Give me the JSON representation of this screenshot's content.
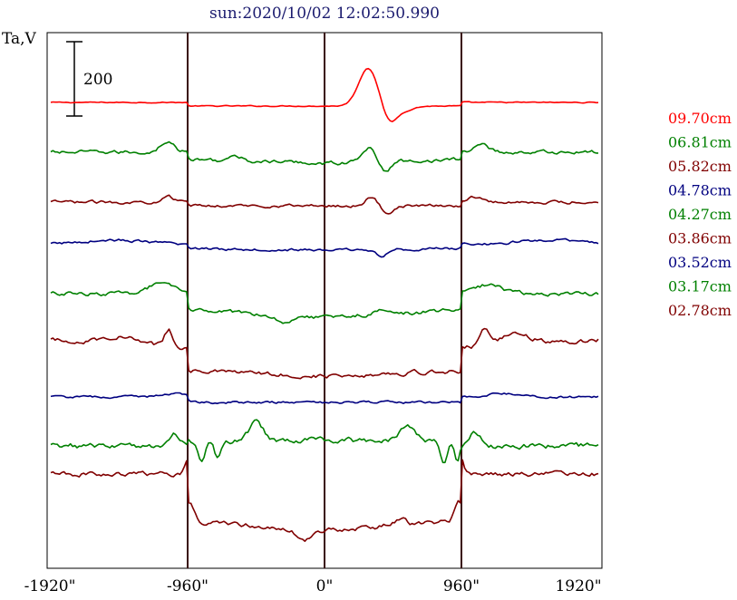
{
  "chart_data": {
    "type": "line",
    "title": "sun:2020/10/02 12:02:50.990",
    "ylabel": "Ta,V",
    "scale_bar_label": "200",
    "x_ticks": [
      "-1920\"",
      "-960\"",
      "0\"",
      "960\"",
      "1920\""
    ],
    "x_tick_values": [
      -1920,
      -960,
      0,
      960,
      1920
    ],
    "vertical_markers": [
      -960,
      0,
      960
    ],
    "grid": false,
    "legend_position": "right",
    "series": [
      {
        "name": "09.70cm",
        "color": "#ff0000",
        "offset": 0
      },
      {
        "name": "06.81cm",
        "color": "#008000",
        "offset": 1
      },
      {
        "name": "05.82cm",
        "color": "#800000",
        "offset": 2
      },
      {
        "name": "04.78cm",
        "color": "#000080",
        "offset": 3
      },
      {
        "name": "04.27cm",
        "color": "#008000",
        "offset": 4
      },
      {
        "name": "03.86cm",
        "color": "#800000",
        "offset": 5
      },
      {
        "name": "03.52cm",
        "color": "#000080",
        "offset": 6
      },
      {
        "name": "03.17cm",
        "color": "#008000",
        "offset": 7
      },
      {
        "name": "02.78cm",
        "color": "#800000",
        "offset": 8
      }
    ]
  }
}
